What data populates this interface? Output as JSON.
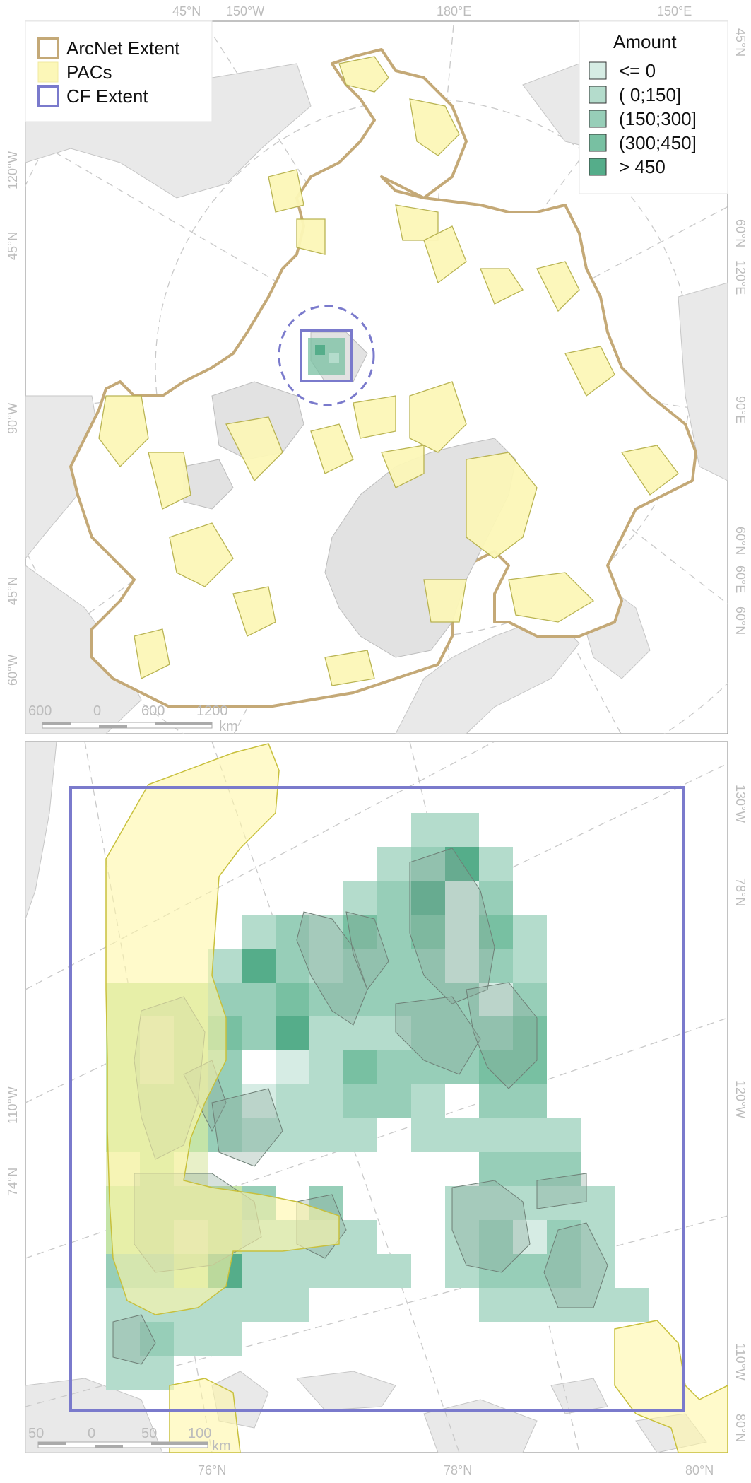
{
  "top_map": {
    "legend": {
      "items": [
        {
          "label": "ArcNet Extent",
          "color": "#c4a977"
        },
        {
          "label": "PACs",
          "color": "#fcf7b8"
        },
        {
          "label": "CF Extent",
          "color": "#7a7acc"
        }
      ]
    },
    "amount_legend": {
      "title": "Amount",
      "classes": [
        {
          "label": "<=   0",
          "color": "#d6ece4"
        },
        {
          "label": "(  0;150]",
          "color": "#b4dccc"
        },
        {
          "label": "(150;300]",
          "color": "#97ceb8"
        },
        {
          "label": "(300;450]",
          "color": "#78c0a2"
        },
        {
          "label": "> 450",
          "color": "#55ad8a"
        }
      ]
    },
    "graticule_labels": {
      "top": [
        "45°N",
        "150°W",
        "180°E",
        "150°E"
      ],
      "left": [
        "120°W",
        "45°N",
        "90°W",
        "45°N",
        "60°W"
      ],
      "right": [
        "45°N",
        "60°N",
        "120°E",
        "90°E",
        "60°N",
        "60°E",
        "60°N"
      ]
    },
    "scale_bar": {
      "ticks": [
        "600",
        "0",
        "600",
        "1200"
      ],
      "unit": "km"
    }
  },
  "bottom_map": {
    "graticule_labels": {
      "bottom": [
        "76°N",
        "78°N",
        "80°N"
      ],
      "left": [
        "110°W",
        "74°N"
      ],
      "right": [
        "130°W",
        "78°N",
        "120°W",
        "110°W",
        "80°N"
      ]
    },
    "scale_bar": {
      "ticks": [
        "50",
        "0",
        "50",
        "100"
      ],
      "unit": "km"
    }
  }
}
